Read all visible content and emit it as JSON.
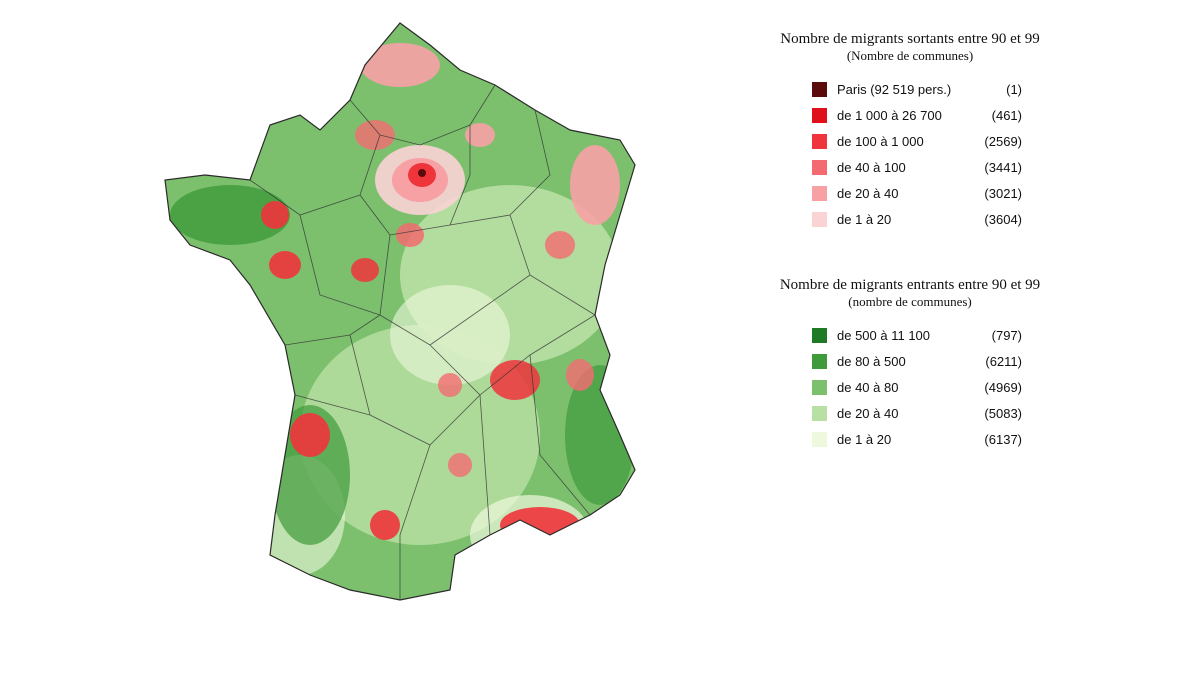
{
  "legend_out": {
    "title": "Nombre de migrants sortants entre 90 et 99",
    "subtitle": "(Nombre de communes)",
    "items": [
      {
        "label": "Paris (92 519 pers.)",
        "count": "(1)",
        "color": "#5a0a0a"
      },
      {
        "label": "de 1 000 à 26 700",
        "count": "(461)",
        "color": "#e0101a"
      },
      {
        "label": "de 100 à 1 000",
        "count": "(2569)",
        "color": "#f0343c"
      },
      {
        "label": "de 40 à 100",
        "count": "(3441)",
        "color": "#f36b70"
      },
      {
        "label": "de 20 à 40",
        "count": "(3021)",
        "color": "#f7a1a4"
      },
      {
        "label": "de 1 à 20",
        "count": "(3604)",
        "color": "#fad3d4"
      }
    ]
  },
  "legend_in": {
    "title": "Nombre de migrants entrants entre 90 et 99",
    "subtitle": "(nombre de communes)",
    "items": [
      {
        "label": "de 500 à 11 100",
        "count": "(797)",
        "color": "#1f7a26"
      },
      {
        "label": "de 80 à 500",
        "count": "(6211)",
        "color": "#3e9a3a"
      },
      {
        "label": "de 40 à 80",
        "count": "(4969)",
        "color": "#7cc06e"
      },
      {
        "label": "de 20 à 40",
        "count": "(5083)",
        "color": "#b9e0a4"
      },
      {
        "label": "de 1 à 20",
        "count": "(6137)",
        "color": "#eef8dc"
      }
    ]
  }
}
